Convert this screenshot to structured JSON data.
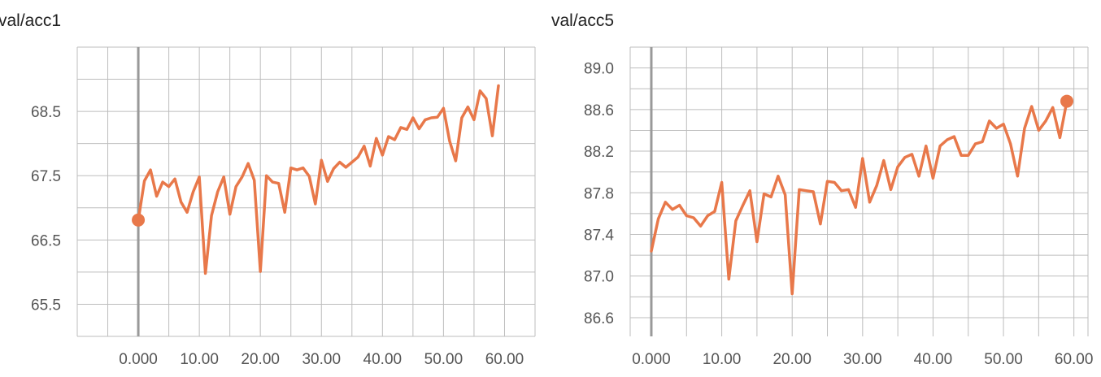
{
  "colors": {
    "series": "#e8784a",
    "grid": "#bdbdbd",
    "axis": "#999999"
  },
  "chart_data": [
    {
      "type": "line",
      "title": "val/acc1",
      "xlabel": "",
      "ylabel": "",
      "xlim": [
        -10,
        65
      ],
      "ylim": [
        65.0,
        69.5
      ],
      "grid": true,
      "x_ticks": [
        "0.000",
        "10.00",
        "20.00",
        "30.00",
        "40.00",
        "50.00",
        "60.00"
      ],
      "y_ticks": [
        "65.5",
        "66.5",
        "67.5",
        "68.5"
      ],
      "marker": "start",
      "series": [
        {
          "values": [
            66.81,
            67.42,
            67.59,
            67.18,
            67.4,
            67.33,
            67.45,
            67.09,
            66.93,
            67.25,
            67.48,
            65.98,
            66.88,
            67.25,
            67.48,
            66.9,
            67.33,
            67.48,
            67.69,
            67.43,
            66.01,
            67.5,
            67.4,
            67.38,
            66.93,
            67.62,
            67.59,
            67.62,
            67.49,
            67.06,
            67.74,
            67.41,
            67.61,
            67.71,
            67.63,
            67.71,
            67.79,
            67.96,
            67.65,
            68.08,
            67.82,
            68.11,
            68.06,
            68.25,
            68.22,
            68.4,
            68.23,
            68.37,
            68.4,
            68.41,
            68.55,
            68.04,
            67.73,
            68.4,
            68.57,
            68.37,
            68.82,
            68.7,
            68.12,
            68.9
          ]
        }
      ]
    },
    {
      "type": "line",
      "title": "val/acc5",
      "xlabel": "",
      "ylabel": "",
      "xlim": [
        -3,
        62
      ],
      "ylim": [
        86.42,
        89.2
      ],
      "grid": true,
      "x_ticks": [
        "0.000",
        "10.00",
        "20.00",
        "30.00",
        "40.00",
        "50.00",
        "60.00"
      ],
      "y_ticks": [
        "86.6",
        "87.0",
        "87.4",
        "87.8",
        "88.2",
        "88.6",
        "89.0"
      ],
      "marker": "end",
      "series": [
        {
          "values": [
            87.24,
            87.55,
            87.71,
            87.64,
            87.68,
            87.58,
            87.56,
            87.48,
            87.58,
            87.62,
            87.9,
            86.97,
            87.53,
            87.68,
            87.82,
            87.33,
            87.79,
            87.76,
            87.96,
            87.78,
            86.83,
            87.83,
            87.82,
            87.81,
            87.5,
            87.91,
            87.9,
            87.82,
            87.83,
            87.66,
            88.13,
            87.71,
            87.87,
            88.11,
            87.83,
            88.05,
            88.14,
            88.17,
            87.96,
            88.25,
            87.94,
            88.25,
            88.31,
            88.34,
            88.16,
            88.16,
            88.27,
            88.29,
            88.49,
            88.42,
            88.46,
            88.27,
            87.96,
            88.42,
            88.63,
            88.4,
            88.49,
            88.62,
            88.33,
            88.68
          ]
        }
      ]
    }
  ]
}
